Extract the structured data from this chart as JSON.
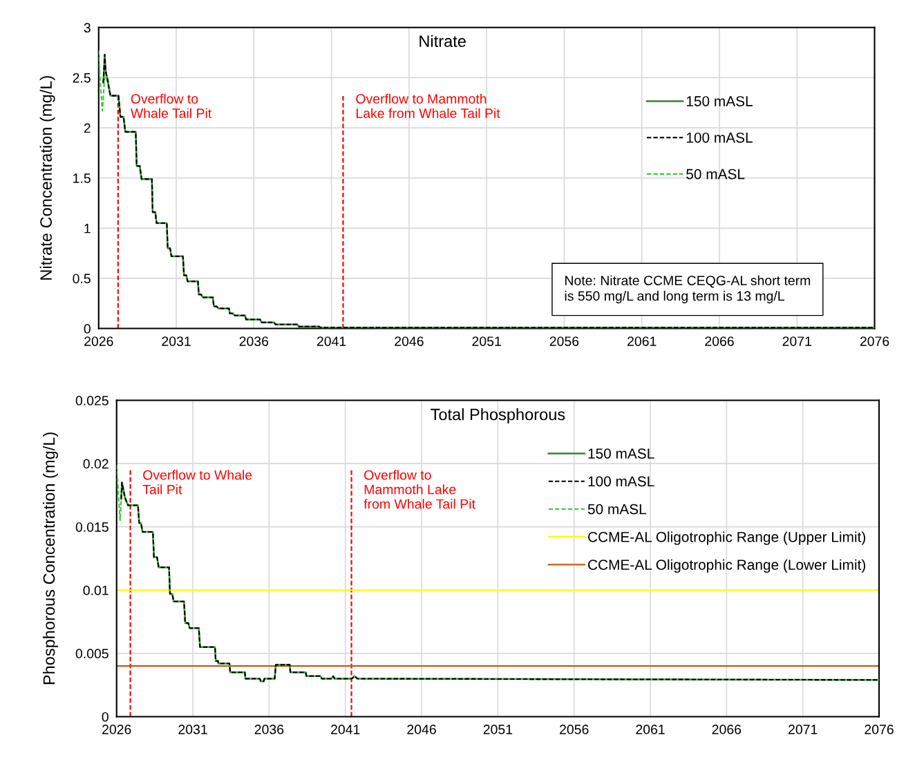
{
  "chart_data": [
    {
      "type": "line",
      "title": "Nitrate",
      "ylabel": "Nitrate Concentration (mg/L)",
      "xlim": [
        2026,
        2076
      ],
      "xticks": [
        2026,
        2031,
        2036,
        2041,
        2046,
        2051,
        2056,
        2061,
        2066,
        2071,
        2076
      ],
      "ylim": [
        0,
        3
      ],
      "yticks": [
        0,
        0.5,
        1,
        1.5,
        2,
        2.5,
        3
      ],
      "grid": true,
      "legend": "right",
      "series": [
        {
          "name": "150 mASL",
          "color": "#3a7d3a",
          "line_style": "solid",
          "x": [
            2026.3,
            2026.39,
            2026.45,
            2026.76,
            2027.28,
            2027.4,
            2027.6,
            2027.72,
            2028.39,
            2028.45,
            2028.65,
            2028.76,
            2029.43,
            2029.48,
            2029.65,
            2029.73,
            2030.39,
            2030.45,
            2030.6,
            2030.69,
            2031.43,
            2031.5,
            2031.65,
            2031.73,
            2032.4,
            2032.45,
            2032.6,
            2032.7,
            2033.36,
            2033.42,
            2033.6,
            2033.73,
            2034.4,
            2034.45,
            2034.65,
            2034.77,
            2035.44,
            2035.5,
            2036.4,
            2036.5,
            2037.3,
            2037.4,
            2038.8,
            2038.9,
            2040.2,
            2040.3,
            2076
          ],
          "values": [
            2.45,
            2.73,
            2.57,
            2.32,
            2.32,
            2.11,
            2.11,
            1.96,
            1.96,
            1.62,
            1.62,
            1.49,
            1.49,
            1.16,
            1.16,
            1.05,
            1.05,
            0.8,
            0.8,
            0.72,
            0.72,
            0.53,
            0.53,
            0.47,
            0.47,
            0.34,
            0.34,
            0.31,
            0.31,
            0.22,
            0.22,
            0.2,
            0.2,
            0.15,
            0.15,
            0.13,
            0.13,
            0.09,
            0.09,
            0.06,
            0.06,
            0.04,
            0.04,
            0.02,
            0.02,
            0.01,
            0.01
          ]
        },
        {
          "name": "100 mASL",
          "color": "#000000",
          "line_style": "dashed",
          "x": [
            2026.3,
            2026.39,
            2026.45,
            2026.76,
            2027.28,
            2027.4,
            2027.6,
            2027.72,
            2028.39,
            2028.45,
            2028.65,
            2028.76,
            2029.43,
            2029.48,
            2029.65,
            2029.73,
            2030.39,
            2030.45,
            2030.6,
            2030.69,
            2031.43,
            2031.5,
            2031.65,
            2031.73,
            2032.4,
            2032.45,
            2032.6,
            2032.7,
            2033.36,
            2033.42,
            2033.6,
            2033.73,
            2034.4,
            2034.45,
            2034.65,
            2034.77,
            2035.44,
            2035.5,
            2036.4,
            2036.5,
            2037.3,
            2037.4,
            2038.8,
            2038.9,
            2040.2,
            2040.3,
            2076
          ],
          "values": [
            2.45,
            2.73,
            2.57,
            2.32,
            2.32,
            2.11,
            2.11,
            1.96,
            1.96,
            1.62,
            1.62,
            1.49,
            1.49,
            1.16,
            1.16,
            1.05,
            1.05,
            0.8,
            0.8,
            0.72,
            0.72,
            0.53,
            0.53,
            0.47,
            0.47,
            0.34,
            0.34,
            0.31,
            0.31,
            0.22,
            0.22,
            0.2,
            0.2,
            0.15,
            0.15,
            0.13,
            0.13,
            0.09,
            0.09,
            0.06,
            0.06,
            0.04,
            0.04,
            0.02,
            0.02,
            0.01,
            0.01
          ]
        },
        {
          "name": "50 mASL",
          "color": "#33cc33",
          "line_style": "dashed",
          "x": [
            2026,
            2026.1,
            2026.24,
            2026.4,
            2026.6,
            2026.76,
            2027.28,
            2027.4,
            2027.6,
            2027.72,
            2028.39,
            2028.45,
            2028.65,
            2028.76,
            2029.43,
            2029.48,
            2029.65,
            2029.73,
            2030.39,
            2030.45,
            2030.6,
            2030.69,
            2031.43,
            2031.5,
            2031.65,
            2031.73,
            2032.4,
            2032.45,
            2032.6,
            2032.7,
            2033.36,
            2033.42,
            2033.6,
            2033.73,
            2034.4,
            2034.45,
            2034.65,
            2034.77,
            2035.44,
            2035.5,
            2036.4,
            2036.5,
            2037.3,
            2037.4,
            2038.8,
            2038.9,
            2040.2,
            2040.3,
            2076
          ],
          "values": [
            2.77,
            2.45,
            2.17,
            2.54,
            2.5,
            2.32,
            2.32,
            2.11,
            2.11,
            1.96,
            1.96,
            1.62,
            1.62,
            1.49,
            1.49,
            1.16,
            1.16,
            1.05,
            1.05,
            0.8,
            0.8,
            0.72,
            0.72,
            0.53,
            0.53,
            0.47,
            0.47,
            0.34,
            0.34,
            0.31,
            0.31,
            0.22,
            0.22,
            0.2,
            0.2,
            0.15,
            0.15,
            0.13,
            0.13,
            0.09,
            0.09,
            0.06,
            0.06,
            0.04,
            0.04,
            0.02,
            0.02,
            0.01,
            0.01
          ]
        }
      ],
      "ref_lines": [
        {
          "axis": "x",
          "value": 2027.25,
          "label": "Overflow to\nWhale Tail Pit",
          "color": "#ff0000",
          "line_style": "dashed"
        },
        {
          "axis": "x",
          "value": 2041.75,
          "label": "Overflow to Mammoth\nLake from Whale Tail Pit",
          "color": "#ff0000",
          "line_style": "dashed"
        }
      ],
      "annotations": [
        "Note: Nitrate CCME CEQG-AL short term\nis 550 mg/L and long term is 13 mg/L"
      ]
    },
    {
      "type": "line",
      "title": "Total Phosphorous",
      "ylabel": "Phosphorous Concentration (mg/L)",
      "xlim": [
        2026,
        2076
      ],
      "xticks": [
        2026,
        2031,
        2036,
        2041,
        2046,
        2051,
        2056,
        2061,
        2066,
        2071,
        2076
      ],
      "ylim": [
        0,
        0.025
      ],
      "yticks": [
        0,
        0.005,
        0.01,
        0.015,
        0.02,
        0.025
      ],
      "grid": true,
      "legend": "top right",
      "series": [
        {
          "name": "150 mASL",
          "color": "#3a7d3a",
          "line_style": "solid",
          "x": [
            2026.3,
            2026.35,
            2026.55,
            2026.75,
            2027.4,
            2027.48,
            2027.6,
            2027.7,
            2028.38,
            2028.45,
            2028.65,
            2028.76,
            2029.44,
            2029.5,
            2029.65,
            2029.74,
            2030.42,
            2030.5,
            2030.7,
            2030.79,
            2031.39,
            2031.47,
            2032.45,
            2032.5,
            2032.65,
            2032.68,
            2033.4,
            2033.45,
            2034.41,
            2034.45,
            2035.39,
            2035.45,
            2035.65,
            2035.69,
            2036.37,
            2036.44,
            2037.35,
            2037.4,
            2038.4,
            2038.45,
            2039.38,
            2039.45,
            2040.1,
            2040.2,
            2040.3,
            2041.42,
            2041.6,
            2041.8,
            2076
          ],
          "values": [
            0.0172,
            0.0185,
            0.0173,
            0.0167,
            0.0167,
            0.0153,
            0.0153,
            0.0146,
            0.0146,
            0.0126,
            0.0126,
            0.0118,
            0.0118,
            0.0097,
            0.0097,
            0.0091,
            0.0091,
            0.0074,
            0.0074,
            0.007,
            0.007,
            0.0055,
            0.0055,
            0.0044,
            0.0044,
            0.0042,
            0.0042,
            0.0035,
            0.0035,
            0.003,
            0.003,
            0.0028,
            0.0028,
            0.003,
            0.003,
            0.0041,
            0.0041,
            0.0035,
            0.0035,
            0.0032,
            0.0032,
            0.003,
            0.003,
            0.0032,
            0.003,
            0.003,
            0.0032,
            0.003,
            0.0029
          ]
        },
        {
          "name": "100 mASL",
          "color": "#000000",
          "line_style": "dashed",
          "x": [
            2026.3,
            2026.35,
            2026.55,
            2026.75,
            2027.4,
            2027.48,
            2027.6,
            2027.7,
            2028.38,
            2028.45,
            2028.65,
            2028.76,
            2029.44,
            2029.5,
            2029.65,
            2029.74,
            2030.42,
            2030.5,
            2030.7,
            2030.79,
            2031.39,
            2031.47,
            2032.45,
            2032.5,
            2032.65,
            2032.68,
            2033.4,
            2033.45,
            2034.41,
            2034.45,
            2035.39,
            2035.45,
            2035.65,
            2035.69,
            2036.37,
            2036.44,
            2037.35,
            2037.4,
            2038.4,
            2038.45,
            2039.38,
            2039.45,
            2040.1,
            2040.2,
            2040.3,
            2041.42,
            2041.6,
            2041.8,
            2076
          ],
          "values": [
            0.0172,
            0.0185,
            0.0173,
            0.0167,
            0.0167,
            0.0153,
            0.0153,
            0.0146,
            0.0146,
            0.0126,
            0.0126,
            0.0118,
            0.0118,
            0.0097,
            0.0097,
            0.0091,
            0.0091,
            0.0074,
            0.0074,
            0.007,
            0.007,
            0.0055,
            0.0055,
            0.0044,
            0.0044,
            0.0042,
            0.0042,
            0.0035,
            0.0035,
            0.003,
            0.003,
            0.0028,
            0.0028,
            0.003,
            0.003,
            0.0041,
            0.0041,
            0.0035,
            0.0035,
            0.0032,
            0.0032,
            0.003,
            0.003,
            0.0032,
            0.003,
            0.003,
            0.0032,
            0.003,
            0.0029
          ]
        },
        {
          "name": "50 mASL",
          "color": "#33cc33",
          "line_style": "dashed",
          "x": [
            2026,
            2026.23,
            2026.35,
            2026.55,
            2026.75,
            2027.4,
            2027.48,
            2027.6,
            2027.7,
            2028.38,
            2028.45,
            2028.65,
            2028.76,
            2029.44,
            2029.5,
            2029.65,
            2029.74,
            2030.42,
            2030.5,
            2030.7,
            2030.79,
            2031.39,
            2031.47,
            2032.45,
            2032.5,
            2032.65,
            2032.68,
            2033.4,
            2033.45,
            2034.41,
            2034.45,
            2035.39,
            2035.45,
            2035.65,
            2035.69,
            2036.37,
            2036.44,
            2037.35,
            2037.4,
            2038.4,
            2038.45,
            2039.38,
            2039.45,
            2040.1,
            2040.2,
            2040.3,
            2041.42,
            2041.6,
            2041.8,
            2076
          ],
          "values": [
            0.0199,
            0.0155,
            0.0182,
            0.0172,
            0.0167,
            0.0167,
            0.0153,
            0.0153,
            0.0146,
            0.0146,
            0.0126,
            0.0126,
            0.0118,
            0.0118,
            0.0097,
            0.0097,
            0.0091,
            0.0091,
            0.0074,
            0.0074,
            0.007,
            0.007,
            0.0055,
            0.0055,
            0.0044,
            0.0044,
            0.0042,
            0.0042,
            0.0035,
            0.0035,
            0.003,
            0.003,
            0.0028,
            0.0028,
            0.003,
            0.003,
            0.0041,
            0.0041,
            0.0035,
            0.0035,
            0.0032,
            0.0032,
            0.003,
            0.003,
            0.0032,
            0.003,
            0.003,
            0.0032,
            0.003,
            0.0029
          ]
        }
      ],
      "ref_lines": [
        {
          "axis": "x",
          "value": 2026.9,
          "label": "Overflow to Whale\nTail Pit",
          "color": "#ff0000",
          "line_style": "dashed"
        },
        {
          "axis": "x",
          "value": 2041.4,
          "label": "Overflow to\nMammoth Lake\nfrom Whale Tail Pit",
          "color": "#ff0000",
          "line_style": "dashed"
        },
        {
          "axis": "y",
          "value": 0.01,
          "label": "CCME-AL Oligotrophic Range (Upper Limit)",
          "color": "#ffff00",
          "line_style": "solid"
        },
        {
          "axis": "y",
          "value": 0.004,
          "label": "CCME-AL Oligotrophic Range (Lower Limit)",
          "color": "#c55a11",
          "line_style": "solid"
        }
      ]
    }
  ]
}
